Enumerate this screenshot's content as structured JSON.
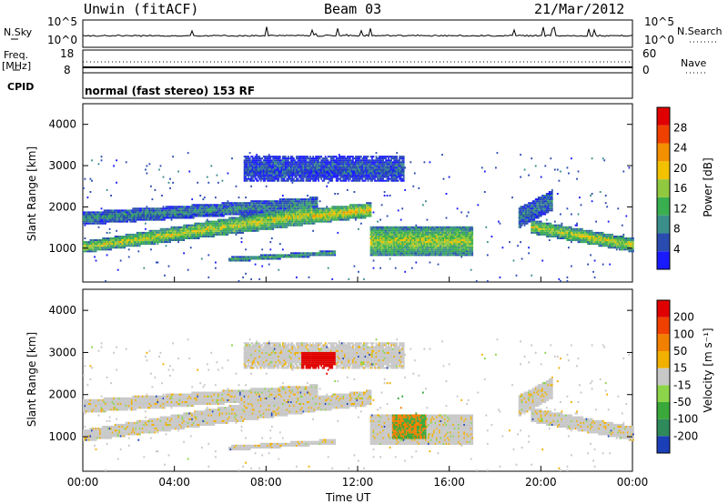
{
  "header": {
    "station": "Unwin (fitACF)",
    "beam": "Beam 03",
    "date": "21/Mar/2012"
  },
  "strip": {
    "nsky_label": "N.Sky",
    "nsky_ticks": [
      "10^5",
      "10^0"
    ],
    "nsearch_label": "N.Search",
    "nsearch_ticks": [
      "10^5",
      "10^0"
    ],
    "freq_label": "Freq.",
    "freq_unit": "[MHz]",
    "freq_ticks": [
      "18",
      "8"
    ],
    "nave_label": "Nave",
    "nave_ticks": [
      "60",
      "0"
    ],
    "cpid_label": "CPID",
    "cpid_text": "normal (fast stereo) 153 RF"
  },
  "chart_data": [
    {
      "type": "heatmap",
      "name": "power",
      "ylabel": "Slant Range [km]",
      "xlabel": "Time UT",
      "x_ticks": [
        "00:00",
        "04:00",
        "08:00",
        "12:00",
        "16:00",
        "20:00",
        "00:00"
      ],
      "xlim_hours": [
        0,
        24
      ],
      "ylim": [
        180,
        4500
      ],
      "y_ticks": [
        1000,
        2000,
        3000,
        4000
      ],
      "colorbar": {
        "label": "Power [dB]",
        "ticks": [
          4,
          8,
          12,
          16,
          20,
          24,
          28
        ],
        "colors": [
          "#1a1aff",
          "#2a4bb0",
          "#3a8f8a",
          "#3aaf4f",
          "#90c840",
          "#f2c200",
          "#f29000",
          "#f04000",
          "#e00000"
        ]
      }
    },
    {
      "type": "heatmap",
      "name": "velocity",
      "ylabel": "Slant Range [km]",
      "xlabel": "Time UT",
      "x_ticks": [
        "00:00",
        "04:00",
        "08:00",
        "12:00",
        "16:00",
        "20:00",
        "00:00"
      ],
      "xlim_hours": [
        0,
        24
      ],
      "ylim": [
        180,
        4500
      ],
      "y_ticks": [
        1000,
        2000,
        3000,
        4000
      ],
      "colorbar": {
        "label": "Velocity [m s⁻¹]",
        "ticks": [
          "200",
          "100",
          "50",
          "15",
          "-15",
          "-50",
          "-100",
          "-200"
        ],
        "colors": [
          "#1a3fb8",
          "#2e8a5a",
          "#3aa83a",
          "#8cd44a",
          "#c8c8c8",
          "#f2b000",
          "#f28000",
          "#f04000",
          "#e00000"
        ]
      }
    }
  ]
}
